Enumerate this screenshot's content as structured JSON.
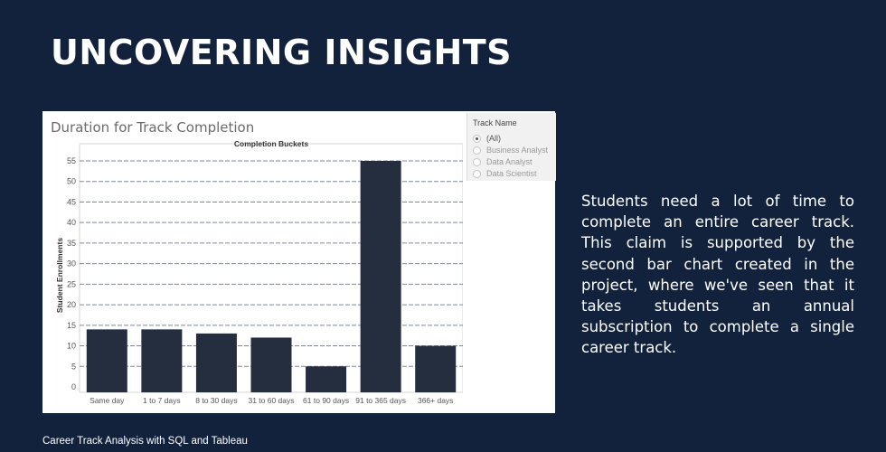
{
  "slide": {
    "title": "UNCOVERING INSIGHTS",
    "body": "Students need a lot of time to complete an entire career track. This claim is supported by the second bar chart created in the project, where we've seen that it takes students an annual subscription to complete a single career track.",
    "footer": "Career Track Analysis with SQL and Tableau"
  },
  "filter": {
    "title": "Track Name",
    "options": [
      "(All)",
      "Business Analyst",
      "Data Analyst",
      "Data Scientist"
    ],
    "selected": "(All)"
  },
  "colors": {
    "background": "#12223d",
    "bar": "#252e3f",
    "gridline": "#7f87a0"
  },
  "chart_data": {
    "type": "bar",
    "title": "Duration for Track Completion",
    "column_header": "Completion Buckets",
    "ylabel": "Student Enrollments",
    "categories": [
      "Same day",
      "1 to 7 days",
      "8 to 30 days",
      "31 to 60 days",
      "61 to 90 days",
      "91 to 365 days",
      "366+ days"
    ],
    "values": [
      14,
      14,
      13,
      12,
      5,
      55,
      10
    ],
    "ylim": [
      0,
      58
    ],
    "yticks": [
      0,
      5,
      10,
      15,
      20,
      25,
      30,
      35,
      40,
      45,
      50,
      55
    ],
    "grid": true
  }
}
